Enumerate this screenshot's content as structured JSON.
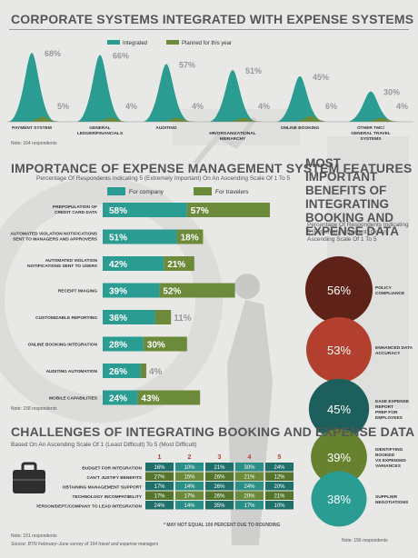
{
  "colors": {
    "integrated": "#2a9c91",
    "planned": "#6b8a3a",
    "lightTeal": "#2a9c91",
    "lightGreen": "#6b8a3a",
    "maroon": "#5e2218",
    "red": "#b3402e",
    "darkTeal": "#1d5f5c",
    "olive": "#66822f",
    "teal": "#2a9c91",
    "headerRed": "#b3402e"
  },
  "section1": {
    "title": "CORPORATE SYSTEMS INTEGRATED WITH EXPENSE SYSTEMS",
    "note": "Note: 164 respondents"
  },
  "section2": {
    "title": "IMPORTANCE OF EXPENSE MANAGEMENT SYSTEM FEATURES",
    "subtitle": "Percentage Of Respondents Indicating 5 (Extremely Important) On An Ascending Scale Of 1 To 5",
    "note": "Note: 158 respondents"
  },
  "section3": {
    "title": "CHALLENGES OF INTEGRATING BOOKING AND EXPENSE DATA",
    "subtitle": "Based On An Ascending Scale Of 1 (Least Difficult) To 5 (Most Difficult)",
    "footnote": "* MAY NOT EQUAL 100 PERCENT DUE TO ROUNDING",
    "note": "Note: 151 respondents",
    "source": "Source: BTN February–June survey of 164 travel and expense managers"
  },
  "right": {
    "title": "MOST IMPORTANT BENEFITS OF INTEGRATING BOOKING AND EXPENSE DATA",
    "subtitle": "Percentage Of Respondents Indicating 5 (Extremely Important) On An Ascending Scale Of 1 To 5",
    "note": "Note: 156 respondents"
  },
  "chart_data": [
    {
      "type": "area",
      "title": "CORPORATE SYSTEMS INTEGRATED WITH EXPENSE SYSTEMS",
      "legend": [
        "Integrated",
        "Planned for this year"
      ],
      "legend_position": "top-center",
      "categories": [
        "PAYMENT SYSTEM",
        "GENERAL LEDGER/FINANCIALS",
        "AUDITING",
        "HR/ORGANIZATIONAL HIERARCHY",
        "ONLINE BOOKING",
        "OTHER TMC/ GENERAL TRAVEL SYSTEMS"
      ],
      "series": [
        {
          "name": "Integrated",
          "values": [
            68,
            66,
            57,
            51,
            45,
            30
          ],
          "labels": [
            "68%",
            "66%",
            "57%",
            "51%",
            "45%",
            "30%"
          ]
        },
        {
          "name": "Planned for this year",
          "values": [
            5,
            4,
            4,
            4,
            6,
            4
          ],
          "labels": [
            "5%",
            "4%",
            "4%",
            "4%",
            "6%",
            "4%"
          ]
        }
      ],
      "ylim": [
        0,
        70
      ]
    },
    {
      "type": "bar",
      "title": "IMPORTANCE OF EXPENSE MANAGEMENT SYSTEM FEATURES",
      "legend": [
        "For company",
        "For travelers"
      ],
      "legend_position": "top",
      "categories": [
        "PREPOPULATION OF CREDIT CARD DATA",
        "AUTOMATED VIOLATION NOTIFICATIONS SENT TO MANAGERS AND APPROVERS",
        "AUTOMATED VIOLATION NOTIFICATIONS SENT TO USERS",
        "RECEIPT IMAGING",
        "CUSTOMIZABLE REPORTING",
        "ONLINE BOOKING INTEGRATION",
        "AUDITING AUTOMATION",
        "MOBILE CAPABILITIES"
      ],
      "series": [
        {
          "name": "For company",
          "values": [
            58,
            51,
            42,
            39,
            36,
            28,
            26,
            24
          ],
          "labels": [
            "58%",
            "51%",
            "42%",
            "39%",
            "36%",
            "28%",
            "26%",
            "24%"
          ]
        },
        {
          "name": "For travelers",
          "values": [
            57,
            18,
            21,
            52,
            11,
            30,
            4,
            43
          ],
          "labels": [
            "57%",
            "18%",
            "21%",
            "52%",
            "11%",
            "30%",
            "4%",
            "43%"
          ]
        }
      ]
    },
    {
      "type": "bubble",
      "title": "MOST IMPORTANT BENEFITS OF INTEGRATING BOOKING AND EXPENSE DATA",
      "categories": [
        "POLICY COMPLIANCE",
        "ENHANCED DATA ACCURACY",
        "EASE EXPENSE REPORT PREP FOR EMPLOYEES",
        "IDENTIFYING BOOKED VS EXPENSED VARIANCES",
        "SUPPLIER NEGOTIATIONS"
      ],
      "values": [
        56,
        53,
        45,
        39,
        38
      ],
      "labels": [
        "56%",
        "53%",
        "45%",
        "39%",
        "38%"
      ]
    },
    {
      "type": "table",
      "title": "CHALLENGES OF INTEGRATING BOOKING AND EXPENSE DATA",
      "columns": [
        "1",
        "2",
        "3",
        "4",
        "5"
      ],
      "rows": [
        {
          "label": "BUDGET FOR INTEGRATION",
          "values": [
            "16%",
            "10%",
            "21%",
            "30%",
            "24%"
          ]
        },
        {
          "label": "CAN'T JUSTIFY BENEFITS",
          "values": [
            "27%",
            "15%",
            "26%",
            "21%",
            "12%"
          ]
        },
        {
          "label": "OBTAINING MANAGEMENT SUPPORT",
          "values": [
            "17%",
            "14%",
            "26%",
            "24%",
            "20%"
          ]
        },
        {
          "label": "TECHNOLOGY INCOMPATIBILITY",
          "values": [
            "17%",
            "17%",
            "26%",
            "20%",
            "21%"
          ]
        },
        {
          "label": "IDENTIFYING PERSON/DEPT./COMPANY TO LEAD INTEGRATION",
          "values": [
            "24%",
            "14%",
            "35%",
            "17%",
            "10%"
          ]
        }
      ]
    }
  ]
}
